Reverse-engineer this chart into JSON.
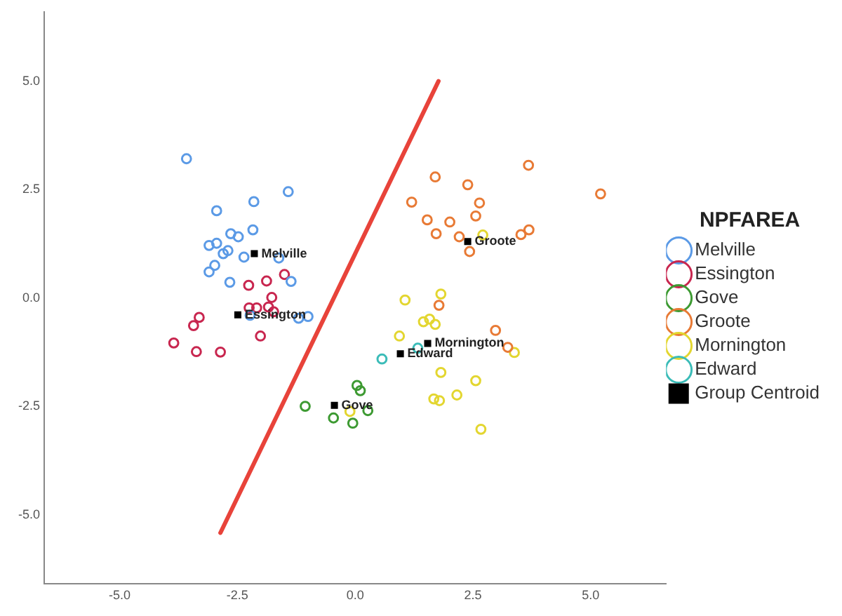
{
  "chart_data": {
    "type": "scatter",
    "legend_title": "NPFAREA",
    "legend": "right",
    "grid": false,
    "xlim": [
      -6.6,
      6.6
    ],
    "ylim": [
      -6.6,
      6.6
    ],
    "xticks": [
      {
        "value": -5,
        "label": "-5.0"
      },
      {
        "value": -2.5,
        "label": "-2.5"
      },
      {
        "value": 0,
        "label": "0.0"
      },
      {
        "value": 2.5,
        "label": "2.5"
      },
      {
        "value": 5,
        "label": "5.0"
      }
    ],
    "yticks": [
      {
        "value": -5,
        "label": "-5.0"
      },
      {
        "value": -2.5,
        "label": "-2.5"
      },
      {
        "value": 0,
        "label": "0.0"
      },
      {
        "value": 2.5,
        "label": "2.5"
      },
      {
        "value": 5,
        "label": "5.0"
      }
    ],
    "series": [
      {
        "name": "Melville",
        "color": "#5b9ae6",
        "marker": "circle",
        "x": [
          -3.58,
          -1.42,
          -2.94,
          -2.15,
          -2.17,
          -2.64,
          -2.48,
          -3.1,
          -2.94,
          -2.7,
          -2.8,
          -2.36,
          -1.62,
          -2.98,
          -3.1,
          -2.66,
          -1.36,
          -2.23,
          -1.2,
          -1.0
        ],
        "values": [
          3.21,
          2.45,
          2.01,
          2.22,
          1.57,
          1.48,
          1.41,
          1.21,
          1.26,
          1.09,
          1.02,
          0.94,
          0.92,
          0.75,
          0.6,
          0.36,
          0.38,
          -0.4,
          -0.47,
          -0.43
        ]
      },
      {
        "name": "Essington",
        "color": "#c8264f",
        "marker": "circle",
        "x": [
          -1.5,
          -1.88,
          -2.26,
          -1.77,
          -1.84,
          -2.09,
          -2.25,
          -1.73,
          -3.31,
          -3.43,
          -2.01,
          -3.85,
          -3.37,
          -2.86
        ],
        "values": [
          0.54,
          0.39,
          0.29,
          0.01,
          -0.21,
          -0.23,
          -0.23,
          -0.32,
          -0.45,
          -0.64,
          -0.88,
          -1.04,
          -1.24,
          -1.25
        ]
      },
      {
        "name": "Gove",
        "color": "#3d9a32",
        "marker": "circle",
        "x": [
          0.04,
          0.11,
          -1.06,
          0.27,
          -0.46,
          -0.05
        ],
        "values": [
          -2.02,
          -2.14,
          -2.5,
          -2.6,
          -2.77,
          -2.89
        ]
      },
      {
        "name": "Groote",
        "color": "#e87a35",
        "marker": "circle",
        "x": [
          3.68,
          5.21,
          1.7,
          2.39,
          1.2,
          2.64,
          2.56,
          1.53,
          2.01,
          1.72,
          2.21,
          2.43,
          3.69,
          3.52,
          2.98,
          3.24,
          1.78
        ],
        "values": [
          3.06,
          2.4,
          2.79,
          2.61,
          2.21,
          2.19,
          1.89,
          1.8,
          1.75,
          1.48,
          1.41,
          1.07,
          1.57,
          1.46,
          -0.75,
          -1.14,
          -0.17
        ]
      },
      {
        "name": "Mornington",
        "color": "#e3d630",
        "marker": "circle",
        "x": [
          1.06,
          1.82,
          1.58,
          1.45,
          1.7,
          0.94,
          2.71,
          3.38,
          1.82,
          2.56,
          1.67,
          1.79,
          2.16,
          -0.11,
          2.67
        ],
        "values": [
          -0.05,
          0.09,
          -0.49,
          -0.55,
          -0.61,
          -0.88,
          1.45,
          -1.26,
          -1.72,
          -1.91,
          -2.33,
          -2.37,
          -2.24,
          -2.62,
          -3.03
        ]
      },
      {
        "name": "Edward",
        "color": "#3bbcb8",
        "marker": "circle",
        "x": [
          0.57,
          1.33
        ],
        "values": [
          -1.41,
          -1.16
        ]
      },
      {
        "name": "Group Centroid",
        "color": "#000000",
        "marker": "square",
        "x": [
          -2.14,
          -2.49,
          -0.44,
          2.39,
          1.54,
          0.96
        ],
        "values": [
          1.02,
          -0.39,
          -2.48,
          1.3,
          -1.05,
          -1.29
        ]
      },
      {
        "type": "line",
        "color": "#e8433a",
        "marker": "none",
        "line_style": "solid",
        "x": [
          -2.86,
          1.77
        ],
        "values": [
          -5.42,
          5.0
        ]
      }
    ],
    "annotations": [
      {
        "text": "Melville",
        "x": -2.14,
        "y": 1.02
      },
      {
        "text": "Essington",
        "x": -2.49,
        "y": -0.39
      },
      {
        "text": "Gove",
        "x": -0.44,
        "y": -2.48
      },
      {
        "text": "Groote",
        "x": 2.39,
        "y": 1.3
      },
      {
        "text": "Mornington",
        "x": 1.54,
        "y": -1.05
      },
      {
        "text": "Edward",
        "x": 0.96,
        "y": -1.29
      }
    ]
  }
}
